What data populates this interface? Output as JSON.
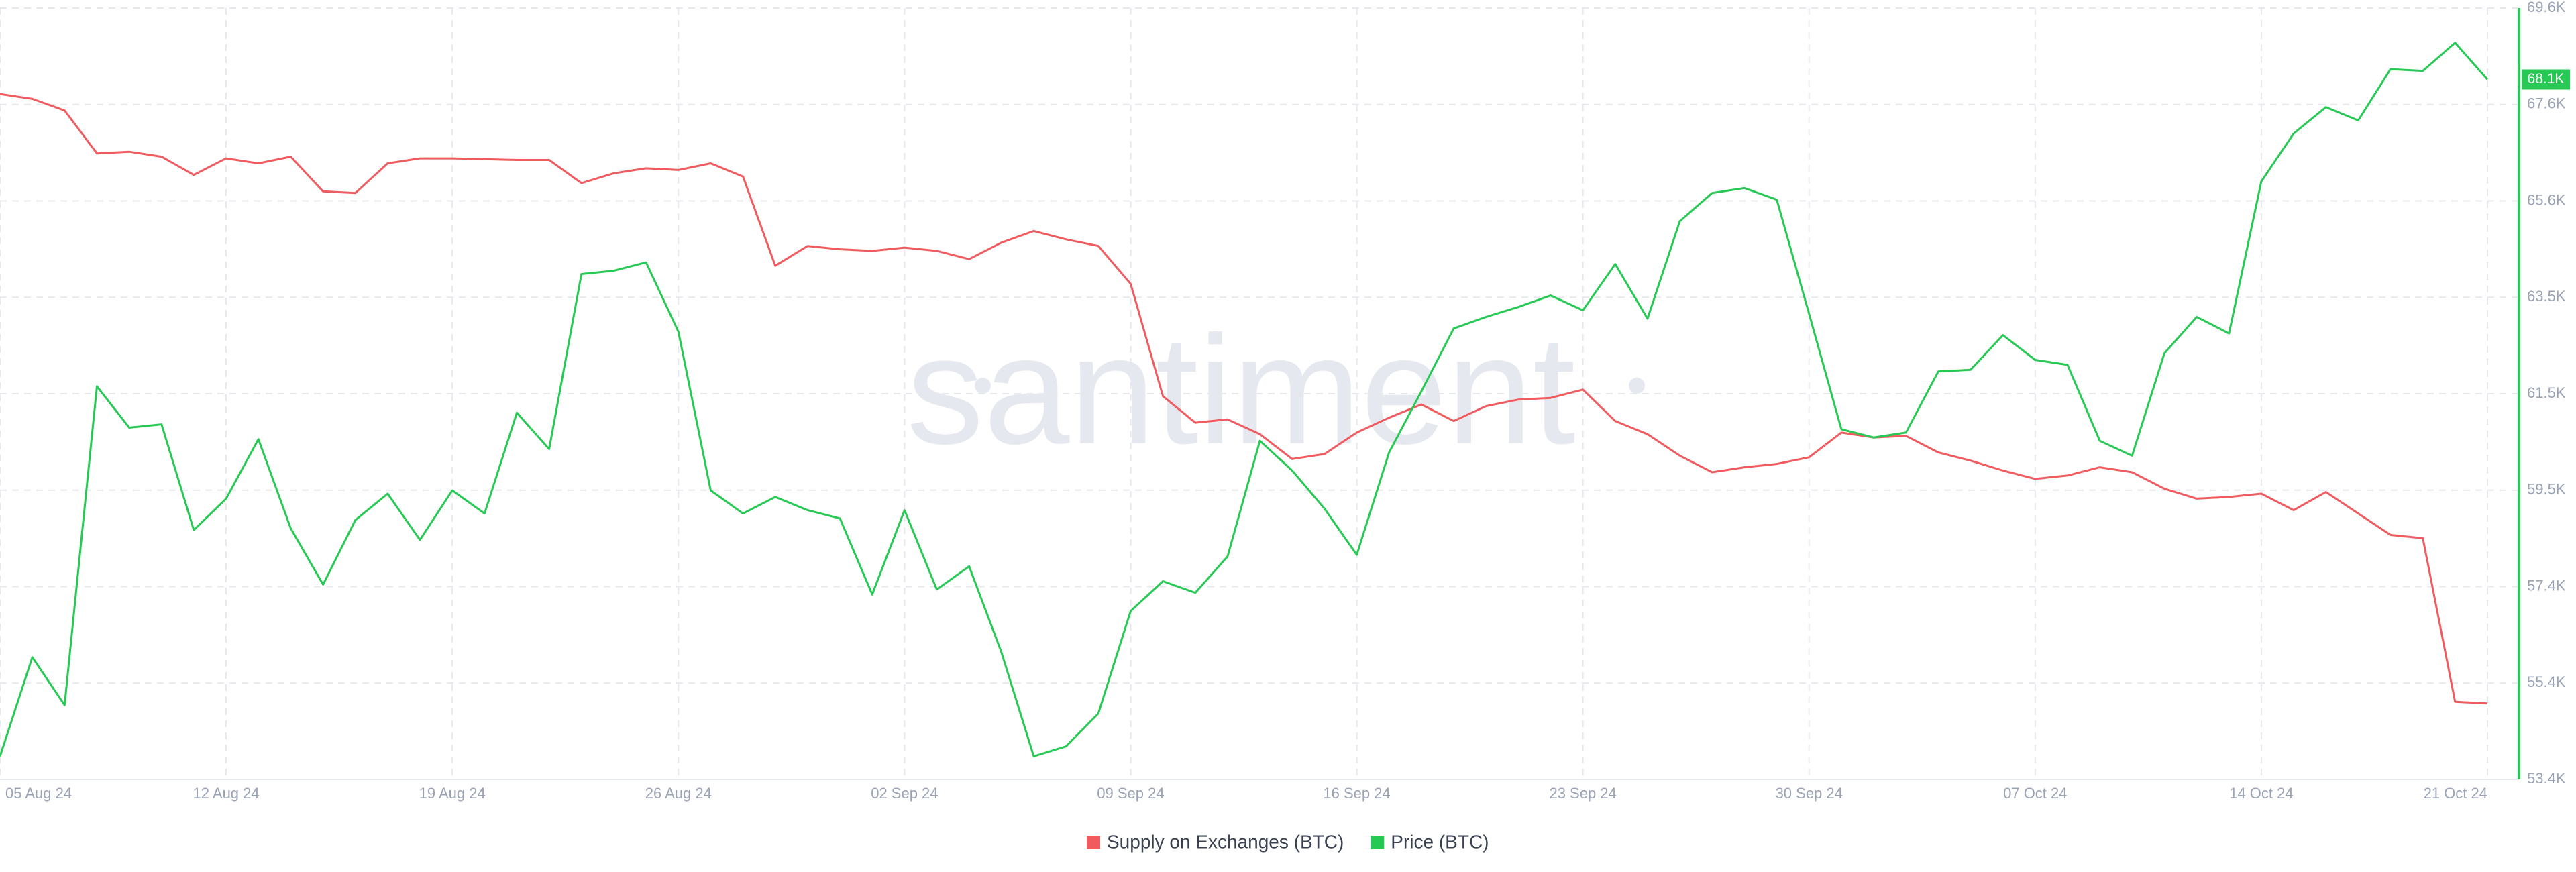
{
  "chart_data": {
    "type": "line",
    "watermark": "santiment",
    "categories": [
      "05 Aug 24",
      null,
      null,
      null,
      null,
      null,
      null,
      "12 Aug 24",
      null,
      null,
      null,
      null,
      null,
      null,
      "19 Aug 24",
      null,
      null,
      null,
      null,
      null,
      null,
      "26 Aug 24",
      null,
      null,
      null,
      null,
      null,
      null,
      "02 Sep 24",
      null,
      null,
      null,
      null,
      null,
      null,
      "09 Sep 24",
      null,
      null,
      null,
      null,
      null,
      null,
      "16 Sep 24",
      null,
      null,
      null,
      null,
      null,
      null,
      "23 Sep 24",
      null,
      null,
      null,
      null,
      null,
      null,
      "30 Sep 24",
      null,
      null,
      null,
      null,
      null,
      null,
      "07 Oct 24",
      null,
      null,
      null,
      null,
      null,
      null,
      "14 Oct 24",
      null,
      null,
      null,
      null,
      null,
      null,
      "21 Oct 24"
    ],
    "series": [
      {
        "name": "Supply on Exchanges (BTC)",
        "color": "#ef5b5f",
        "values": [
          67796,
          67692,
          67449,
          66547,
          66582,
          66478,
          66096,
          66443,
          66339,
          66478,
          65750,
          65715,
          66339,
          66443,
          66443,
          66426,
          66409,
          66409,
          65923,
          66131,
          66235,
          66200,
          66339,
          66061,
          64188,
          64604,
          64535,
          64500,
          64570,
          64500,
          64327,
          64674,
          64917,
          64743,
          64604,
          63807,
          61448,
          60893,
          60962,
          60650,
          60130,
          60234,
          60685,
          60997,
          61274,
          60927,
          61240,
          61378,
          61413,
          61587,
          60927,
          60650,
          60199,
          59852,
          59956,
          60026,
          60164,
          60685,
          60581,
          60615,
          60268,
          60095,
          59887,
          59713,
          59783,
          59956,
          59852,
          59505,
          59297,
          59332,
          59401,
          59054,
          59436,
          58985,
          58534,
          58465,
          55030,
          54996
        ]
      },
      {
        "name": "Price (BTC)",
        "color": "#26c953",
        "last_value_label": "68.1K",
        "values": [
          53886,
          55967,
          54961,
          61656,
          60789,
          60858,
          58638,
          59297,
          60546,
          58673,
          57494,
          58846,
          59401,
          58430,
          59470,
          58985,
          61101,
          60338,
          64015,
          64084,
          64258,
          62801,
          59470,
          58985,
          59332,
          59054,
          58881,
          57285,
          59054,
          57389,
          57875,
          56071,
          53886,
          54094,
          54788,
          56939,
          57563,
          57320,
          58083,
          60511,
          59887,
          59089,
          58118,
          60268,
          61552,
          62870,
          63113,
          63321,
          63564,
          63252,
          64223,
          63078,
          65125,
          65715,
          65819,
          65576,
          63182,
          60754,
          60581,
          60685,
          61968,
          62003,
          62731,
          62211,
          62107,
          60511,
          60199,
          62350,
          63113,
          62766,
          65958,
          66964,
          67519,
          67241,
          68316,
          68282,
          68872,
          68100
        ]
      }
    ],
    "ylim": [
      53400,
      69600
    ],
    "yticks": [
      {
        "value": 53400,
        "label": "53.4K"
      },
      {
        "value": 55425,
        "label": "55.4K"
      },
      {
        "value": 57450,
        "label": "57.4K"
      },
      {
        "value": 59475,
        "label": "59.5K"
      },
      {
        "value": 61500,
        "label": "61.5K"
      },
      {
        "value": 63525,
        "label": "63.5K"
      },
      {
        "value": 65550,
        "label": "65.6K"
      },
      {
        "value": 67575,
        "label": "67.6K"
      },
      {
        "value": 69600,
        "label": "69.6K"
      }
    ],
    "grid": true
  }
}
